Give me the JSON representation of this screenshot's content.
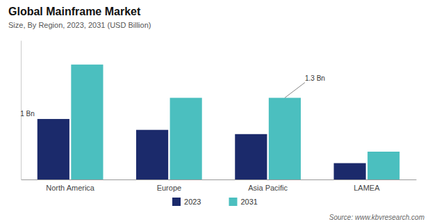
{
  "chart_data": {
    "type": "bar",
    "title": "Global Mainframe Market",
    "subtitle": "Size, By Region, 2023, 2031 (USD Billion)",
    "categories": [
      "North America",
      "Europe",
      "Asia Pacific",
      "LAMEA"
    ],
    "series": [
      {
        "name": "2023",
        "color": "#1b2a6b",
        "values": [
          1.0,
          0.82,
          0.75,
          0.27
        ]
      },
      {
        "name": "2031",
        "color": "#4bbfbf",
        "values": [
          1.9,
          1.35,
          1.35,
          0.46
        ]
      }
    ],
    "ylim": [
      0,
      2.3
    ],
    "tick_labels": "x",
    "grid": false,
    "legend": "bottom",
    "annotations": [
      "1 Bn",
      "1.3 Bn"
    ],
    "source": "Source: www.kbvresearch.com"
  }
}
